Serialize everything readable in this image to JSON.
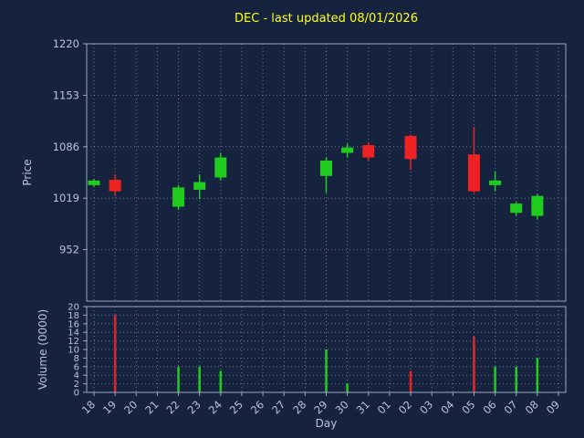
{
  "title": "DEC - last updated 08/01/2026",
  "colors": {
    "background": "#16233f",
    "up": "#21cc21",
    "down": "#ee2222",
    "grid": "#8a94ad",
    "frame": "#9aa6c4",
    "tick_label": "#b9c4de",
    "title": "#ffff22"
  },
  "chart_data": {
    "type": "candlestick_with_volume",
    "title": "DEC - last updated 08/01/2026",
    "xlabel": "Day",
    "grid": "dotted",
    "price_axis": {
      "label": "Price",
      "ticks": [
        952,
        1019,
        1086,
        1153,
        1220
      ],
      "range": [
        885,
        1220
      ]
    },
    "volume_axis": {
      "label": "Volume (0000)",
      "ticks": [
        0,
        2,
        4,
        6,
        8,
        10,
        12,
        14,
        16,
        18,
        20
      ],
      "range": [
        0,
        20
      ]
    },
    "days": [
      "18",
      "19",
      "20",
      "21",
      "22",
      "23",
      "24",
      "25",
      "26",
      "27",
      "28",
      "29",
      "30",
      "31",
      "01",
      "02",
      "03",
      "04",
      "05",
      "06",
      "07",
      "08",
      "09"
    ],
    "candles": [
      {
        "day": "18",
        "open": 1036,
        "close": 1042,
        "high": 1044,
        "low": 1034
      },
      {
        "day": "19",
        "open": 1043,
        "close": 1028,
        "high": 1050,
        "low": 1022
      },
      {
        "day": "22",
        "open": 1008,
        "close": 1033,
        "high": 1036,
        "low": 1004
      },
      {
        "day": "23",
        "open": 1030,
        "close": 1040,
        "high": 1050,
        "low": 1018
      },
      {
        "day": "24",
        "open": 1046,
        "close": 1072,
        "high": 1078,
        "low": 1042
      },
      {
        "day": "29",
        "open": 1048,
        "close": 1068,
        "high": 1072,
        "low": 1026
      },
      {
        "day": "30",
        "open": 1078,
        "close": 1085,
        "high": 1090,
        "low": 1072
      },
      {
        "day": "31",
        "open": 1088,
        "close": 1072,
        "high": 1092,
        "low": 1068
      },
      {
        "day": "02",
        "open": 1100,
        "close": 1070,
        "high": 1102,
        "low": 1056
      },
      {
        "day": "05",
        "open": 1076,
        "close": 1028,
        "high": 1112,
        "low": 1026
      },
      {
        "day": "06",
        "open": 1036,
        "close": 1042,
        "high": 1054,
        "low": 1028
      },
      {
        "day": "07",
        "open": 1000,
        "close": 1012,
        "high": 1014,
        "low": 996
      },
      {
        "day": "08",
        "open": 996,
        "close": 1022,
        "high": 1024,
        "low": 992
      }
    ],
    "volumes": [
      {
        "day": "19",
        "value": 18,
        "direction": "down"
      },
      {
        "day": "22",
        "value": 6,
        "direction": "up"
      },
      {
        "day": "23",
        "value": 6,
        "direction": "up"
      },
      {
        "day": "24",
        "value": 5,
        "direction": "up"
      },
      {
        "day": "29",
        "value": 10,
        "direction": "up"
      },
      {
        "day": "30",
        "value": 2,
        "direction": "up"
      },
      {
        "day": "02",
        "value": 5,
        "direction": "down"
      },
      {
        "day": "05",
        "value": 13,
        "direction": "down"
      },
      {
        "day": "06",
        "value": 6,
        "direction": "up"
      },
      {
        "day": "07",
        "value": 6,
        "direction": "up"
      },
      {
        "day": "08",
        "value": 8,
        "direction": "up"
      }
    ]
  }
}
